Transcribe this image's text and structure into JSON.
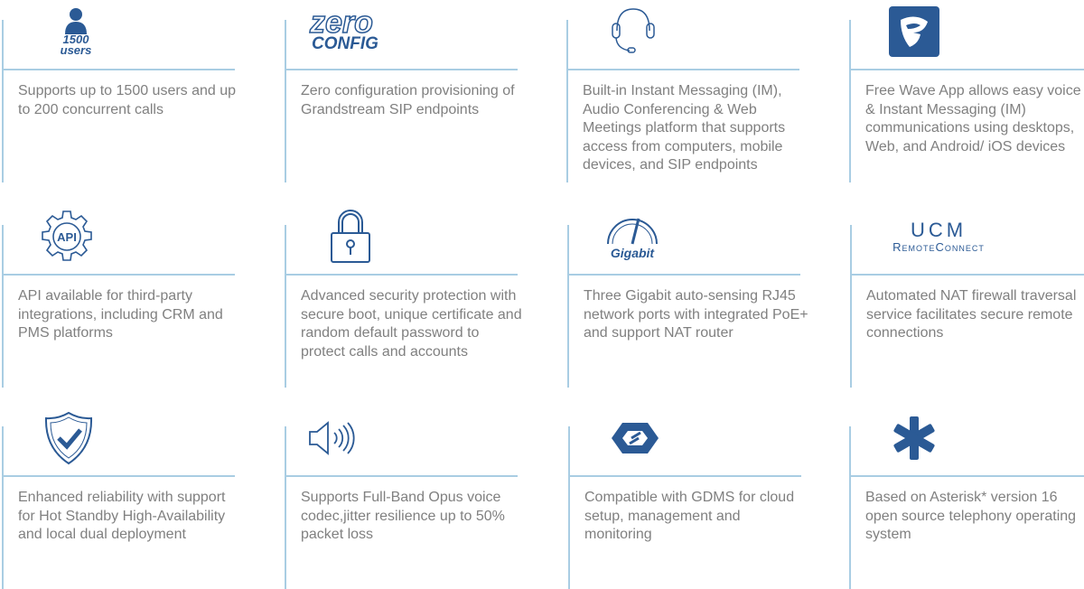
{
  "colors": {
    "accent": "#2b5a95",
    "divider": "#a9cde3",
    "text": "#808080"
  },
  "features": [
    {
      "icon": "user-icon",
      "icon_text": [
        "1500",
        "users"
      ],
      "text": "Supports up to 1500 users and up to 200 concurrent calls"
    },
    {
      "icon": "zero-config-logo",
      "icon_text": [
        "zero",
        "CONFIG"
      ],
      "text": "Zero configuration provisioning of Grandstream SIP endpoints"
    },
    {
      "icon": "headset-icon",
      "text": "Built-in Instant Messaging (IM), Audio Conferencing & Web Meetings platform that supports access from computers, mobile devices, and SIP endpoints"
    },
    {
      "icon": "wave-app-icon",
      "text": "Free Wave App allows easy voice & Instant Messaging (IM) communications using desktops, Web, and Android/ iOS devices"
    },
    {
      "icon": "api-gear-icon",
      "icon_text": [
        "API"
      ],
      "text": "API available for third-party integrations, including CRM and PMS platforms"
    },
    {
      "icon": "lock-icon",
      "text": "Advanced security protection with secure boot, unique certificate and random default password to protect calls and accounts"
    },
    {
      "icon": "gigabit-gauge-icon",
      "icon_text": [
        "Gigabit"
      ],
      "text": "Three Gigabit auto-sensing RJ45 network ports with integrated PoE+ and support NAT router"
    },
    {
      "icon": "ucm-remoteconnect-logo",
      "icon_text": [
        "UCM",
        "RemoteConnect"
      ],
      "text": "Automated NAT firewall traversal service facilitates secure remote connections"
    },
    {
      "icon": "shield-check-icon",
      "text": "Enhanced reliability with support for Hot Standby High-Availability and local dual deployment"
    },
    {
      "icon": "speaker-icon",
      "text": "Supports Full-Band Opus voice codec,jitter resilience up to 50% packet loss"
    },
    {
      "icon": "gdms-icon",
      "text": "Compatible with GDMS for cloud setup, management and monitoring"
    },
    {
      "icon": "asterisk-icon",
      "text": "Based on Asterisk* version 16 open source telephony operating system"
    }
  ]
}
